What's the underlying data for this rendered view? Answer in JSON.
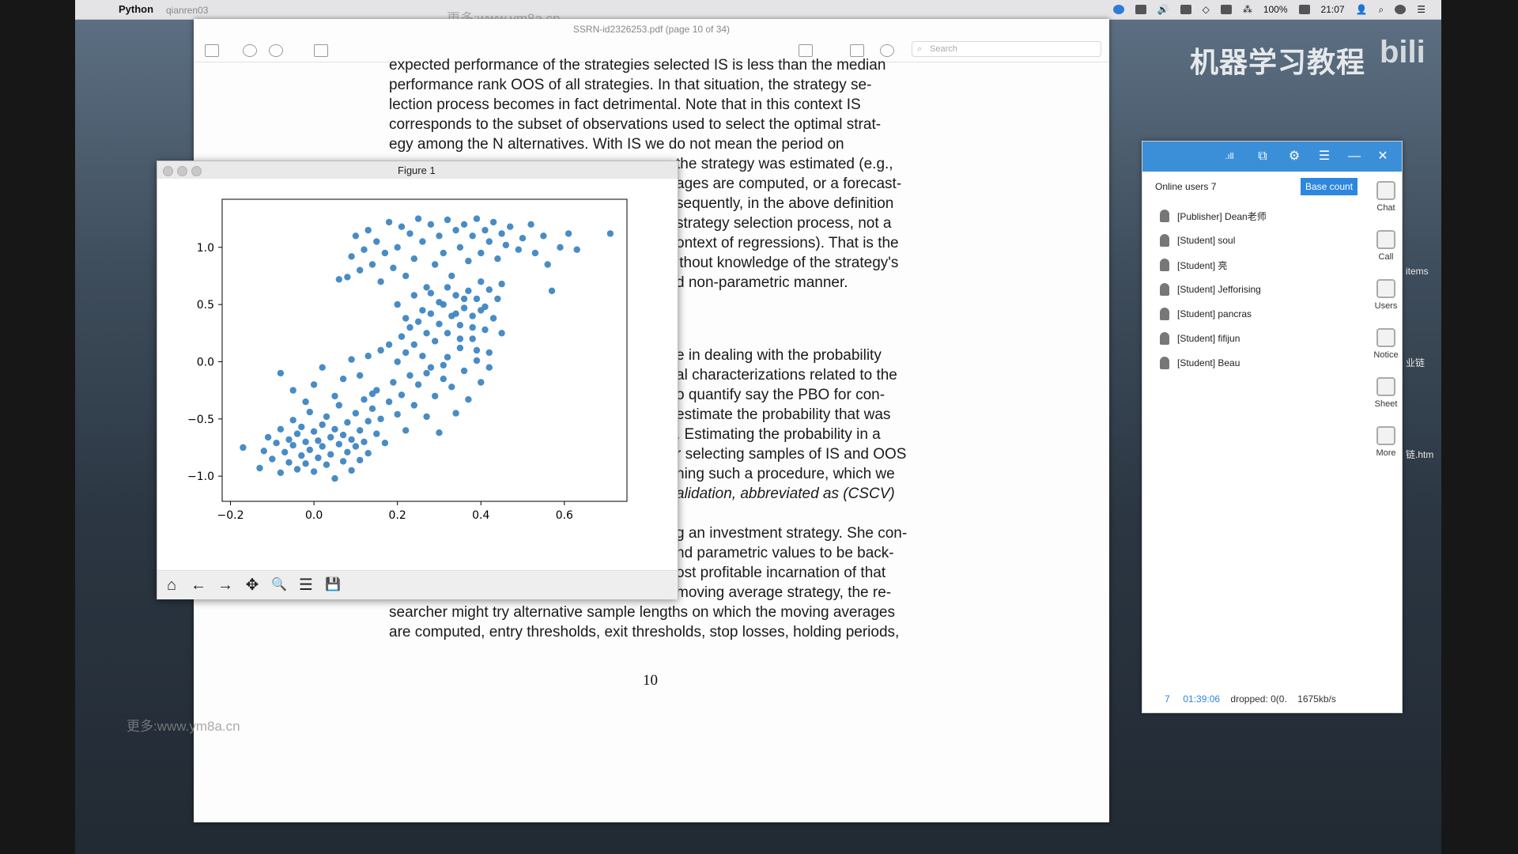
{
  "menubar": {
    "app_name": "Python",
    "ghost_text": "qianren03",
    "battery": "100%",
    "time": "21:07"
  },
  "watermarks": {
    "top": "更多:www.ym8a.cn",
    "bottom": "更多:www.ym8a.cn"
  },
  "channel_logo": "机器学习教程",
  "logo_extra": "bili",
  "desktop_labels": [
    "items",
    "业链",
    "链.htm"
  ],
  "pdf": {
    "title": "SSRN-id2326253.pdf (page 10 of 34)",
    "search_placeholder": "Search",
    "lines": [
      "expected performance of the strategies selected IS is less than the median",
      "performance rank OOS of all strategies. In that situation, the strategy se-",
      "lection process becomes in fact detrimental. Note that in this context IS",
      "corresponds to the subset of observations used to select the optimal strat-",
      "egy among the N alternatives. With IS we do not mean the period on",
      "the strategy was estimated (e.g.,",
      "ages are computed, or a forecast-",
      "sequently, in the above definition",
      "strategy selection process, not a",
      "ontext of regressions). That is the",
      "ithout knowledge of the strategy's",
      "d non-parametric manner.",
      "e in dealing with the probability",
      "al characterizations related to the",
      "o quantify say the PBO for con-",
      "estimate the probability that was",
      ". Estimating the probability in a",
      "r selecting samples of IS and OOS",
      "hing such a procedure, which we",
      "alidation, abbreviated as (CSCV)",
      "g an investment strategy. She con-",
      "nd parametric values to be back-",
      "ost profitable incarnation of that",
      "moving average strategy, the re-",
      "searcher might try alternative sample lengths on which the moving averages",
      "are computed, entry thresholds, exit thresholds, stop losses, holding periods,"
    ],
    "page_number": "10"
  },
  "figure": {
    "title": "Figure 1",
    "toolbar": [
      {
        "name": "home-icon",
        "glyph": "⌂"
      },
      {
        "name": "back-icon",
        "glyph": "←"
      },
      {
        "name": "forward-icon",
        "glyph": "→"
      },
      {
        "name": "pan-icon",
        "glyph": "✥"
      },
      {
        "name": "zoom-icon",
        "glyph": "🔍"
      },
      {
        "name": "configure-icon",
        "glyph": "☰"
      },
      {
        "name": "save-icon",
        "glyph": "💾"
      }
    ]
  },
  "chart_data": {
    "type": "scatter",
    "color": "#3f86c2",
    "xlim": [
      -0.22,
      0.75
    ],
    "ylim": [
      -1.22,
      1.42
    ],
    "xticks": [
      "−0.2",
      "0.0",
      "0.2",
      "0.4",
      "0.6"
    ],
    "xtick_values": [
      -0.2,
      0.0,
      0.2,
      0.4,
      0.6
    ],
    "yticks": [
      "1.0",
      "0.5",
      "0.0",
      "−0.5",
      "−1.0"
    ],
    "ytick_values": [
      1.0,
      0.5,
      0.0,
      -0.5,
      -1.0
    ],
    "points": [
      [
        -0.17,
        -0.75
      ],
      [
        -0.13,
        -0.93
      ],
      [
        -0.12,
        -0.78
      ],
      [
        -0.11,
        -0.66
      ],
      [
        -0.1,
        -0.85
      ],
      [
        -0.09,
        -0.71
      ],
      [
        -0.08,
        -0.97
      ],
      [
        -0.08,
        -0.59
      ],
      [
        -0.07,
        -0.79
      ],
      [
        -0.06,
        -0.68
      ],
      [
        -0.06,
        -0.88
      ],
      [
        -0.05,
        -0.51
      ],
      [
        -0.05,
        -0.73
      ],
      [
        -0.04,
        -0.94
      ],
      [
        -0.04,
        -0.63
      ],
      [
        -0.03,
        -0.82
      ],
      [
        -0.03,
        -0.57
      ],
      [
        -0.02,
        -0.7
      ],
      [
        -0.02,
        -0.89
      ],
      [
        -0.01,
        -0.44
      ],
      [
        -0.01,
        -0.77
      ],
      [
        0.0,
        -0.61
      ],
      [
        0.0,
        -0.96
      ],
      [
        0.01,
        -0.69
      ],
      [
        0.01,
        -0.84
      ],
      [
        0.02,
        -0.55
      ],
      [
        0.02,
        -0.74
      ],
      [
        0.03,
        -0.9
      ],
      [
        0.03,
        -0.48
      ],
      [
        0.04,
        -0.66
      ],
      [
        0.04,
        -0.81
      ],
      [
        0.05,
        -1.02
      ],
      [
        0.05,
        -0.59
      ],
      [
        0.06,
        -0.72
      ],
      [
        0.06,
        -0.38
      ],
      [
        0.07,
        -0.87
      ],
      [
        0.07,
        -0.64
      ],
      [
        0.08,
        -0.53
      ],
      [
        0.08,
        -0.79
      ],
      [
        0.09,
        -0.95
      ],
      [
        0.09,
        -0.68
      ],
      [
        0.1,
        -0.45
      ],
      [
        0.1,
        -0.74
      ],
      [
        0.11,
        -0.6
      ],
      [
        0.11,
        -0.86
      ],
      [
        0.12,
        -0.33
      ],
      [
        0.12,
        -0.7
      ],
      [
        0.13,
        -0.52
      ],
      [
        0.13,
        -0.8
      ],
      [
        0.14,
        -0.41
      ],
      [
        0.15,
        -0.63
      ],
      [
        0.15,
        -0.25
      ],
      [
        0.16,
        -0.5
      ],
      [
        0.17,
        -0.71
      ],
      [
        0.18,
        -0.35
      ],
      [
        0.19,
        -0.18
      ],
      [
        0.2,
        -0.46
      ],
      [
        0.21,
        -0.29
      ],
      [
        0.22,
        -0.6
      ],
      [
        0.23,
        -0.12
      ],
      [
        0.24,
        -0.38
      ],
      [
        0.25,
        -0.2
      ],
      [
        0.27,
        -0.48
      ],
      [
        0.28,
        -0.05
      ],
      [
        0.29,
        -0.3
      ],
      [
        0.3,
        -0.62
      ],
      [
        0.31,
        -0.15
      ],
      [
        0.32,
        0.04
      ],
      [
        0.33,
        -0.22
      ],
      [
        0.34,
        -0.45
      ],
      [
        0.35,
        0.12
      ],
      [
        0.36,
        -0.08
      ],
      [
        0.37,
        -0.33
      ],
      [
        0.38,
        0.2
      ],
      [
        0.39,
        0.01
      ],
      [
        0.4,
        -0.18
      ],
      [
        0.41,
        0.28
      ],
      [
        0.42,
        0.08
      ],
      [
        -0.08,
        -0.1
      ],
      [
        -0.05,
        -0.25
      ],
      [
        -0.02,
        -0.35
      ],
      [
        0.0,
        -0.2
      ],
      [
        0.02,
        -0.05
      ],
      [
        0.05,
        -0.3
      ],
      [
        0.07,
        -0.15
      ],
      [
        0.09,
        0.02
      ],
      [
        0.11,
        -0.12
      ],
      [
        0.13,
        0.05
      ],
      [
        0.14,
        -0.28
      ],
      [
        0.16,
        0.1
      ],
      [
        0.18,
        0.15
      ],
      [
        0.2,
        0.0
      ],
      [
        0.21,
        0.22
      ],
      [
        0.22,
        0.08
      ],
      [
        0.23,
        0.3
      ],
      [
        0.24,
        0.15
      ],
      [
        0.25,
        0.35
      ],
      [
        0.26,
        0.05
      ],
      [
        0.27,
        0.25
      ],
      [
        0.28,
        0.42
      ],
      [
        0.29,
        0.18
      ],
      [
        0.3,
        0.33
      ],
      [
        0.31,
        0.5
      ],
      [
        0.32,
        0.25
      ],
      [
        0.33,
        0.4
      ],
      [
        0.34,
        0.58
      ],
      [
        0.35,
        0.32
      ],
      [
        0.36,
        0.47
      ],
      [
        0.37,
        0.62
      ],
      [
        0.38,
        0.4
      ],
      [
        0.39,
        0.55
      ],
      [
        0.4,
        0.7
      ],
      [
        0.41,
        0.48
      ],
      [
        0.42,
        0.63
      ],
      [
        0.44,
        0.55
      ],
      [
        0.45,
        0.68
      ],
      [
        0.06,
        0.72
      ],
      [
        0.08,
        0.74
      ],
      [
        0.09,
        0.92
      ],
      [
        0.1,
        1.1
      ],
      [
        0.11,
        0.8
      ],
      [
        0.12,
        0.98
      ],
      [
        0.13,
        1.15
      ],
      [
        0.14,
        0.85
      ],
      [
        0.15,
        1.05
      ],
      [
        0.16,
        0.7
      ],
      [
        0.17,
        0.95
      ],
      [
        0.18,
        1.22
      ],
      [
        0.19,
        0.82
      ],
      [
        0.2,
        1.0
      ],
      [
        0.21,
        1.18
      ],
      [
        0.22,
        0.75
      ],
      [
        0.23,
        1.12
      ],
      [
        0.24,
        0.9
      ],
      [
        0.25,
        1.25
      ],
      [
        0.26,
        1.05
      ],
      [
        0.27,
        0.65
      ],
      [
        0.28,
        1.2
      ],
      [
        0.29,
        0.85
      ],
      [
        0.3,
        1.1
      ],
      [
        0.31,
        0.95
      ],
      [
        0.32,
        1.24
      ],
      [
        0.33,
        0.75
      ],
      [
        0.34,
        1.15
      ],
      [
        0.35,
        1.0
      ],
      [
        0.36,
        1.2
      ],
      [
        0.37,
        0.88
      ],
      [
        0.38,
        1.1
      ],
      [
        0.39,
        1.25
      ],
      [
        0.4,
        0.95
      ],
      [
        0.41,
        1.15
      ],
      [
        0.42,
        1.05
      ],
      [
        0.43,
        1.22
      ],
      [
        0.44,
        0.9
      ],
      [
        0.45,
        1.12
      ],
      [
        0.46,
        1.02
      ],
      [
        0.47,
        1.18
      ],
      [
        0.49,
        0.98
      ],
      [
        0.5,
        1.08
      ],
      [
        0.52,
        1.2
      ],
      [
        0.53,
        0.95
      ],
      [
        0.55,
        1.1
      ],
      [
        0.56,
        0.85
      ],
      [
        0.57,
        0.62
      ],
      [
        0.59,
        1.0
      ],
      [
        0.61,
        1.12
      ],
      [
        0.63,
        0.98
      ],
      [
        0.71,
        1.12
      ],
      [
        0.2,
        0.5
      ],
      [
        0.22,
        0.38
      ],
      [
        0.24,
        0.58
      ],
      [
        0.26,
        0.45
      ],
      [
        0.28,
        0.6
      ],
      [
        0.3,
        0.52
      ],
      [
        0.32,
        0.65
      ],
      [
        0.34,
        0.42
      ],
      [
        0.36,
        0.55
      ],
      [
        0.38,
        0.3
      ],
      [
        0.4,
        0.45
      ],
      [
        0.43,
        0.38
      ],
      [
        0.27,
        -0.1
      ],
      [
        0.31,
        -0.03
      ],
      [
        0.35,
        0.2
      ],
      [
        0.39,
        0.1
      ],
      [
        0.42,
        -0.05
      ],
      [
        0.45,
        0.25
      ]
    ]
  },
  "classroom": {
    "online_label": "Online users 7",
    "base_count": "Base count",
    "users": [
      "[Publisher] Dean老师",
      "[Student] soul",
      "[Student] 亮",
      "[Student] Jefforising",
      "[Student] pancras",
      "[Student] fifijun",
      "[Student] Beau"
    ],
    "side_buttons": [
      "Chat",
      "Call",
      "Users",
      "Notice",
      "Sheet",
      "More"
    ],
    "status": {
      "count": "7",
      "time": "01:39:06",
      "dropped": "dropped: 0(0.",
      "rate": "1675kb/s"
    }
  }
}
